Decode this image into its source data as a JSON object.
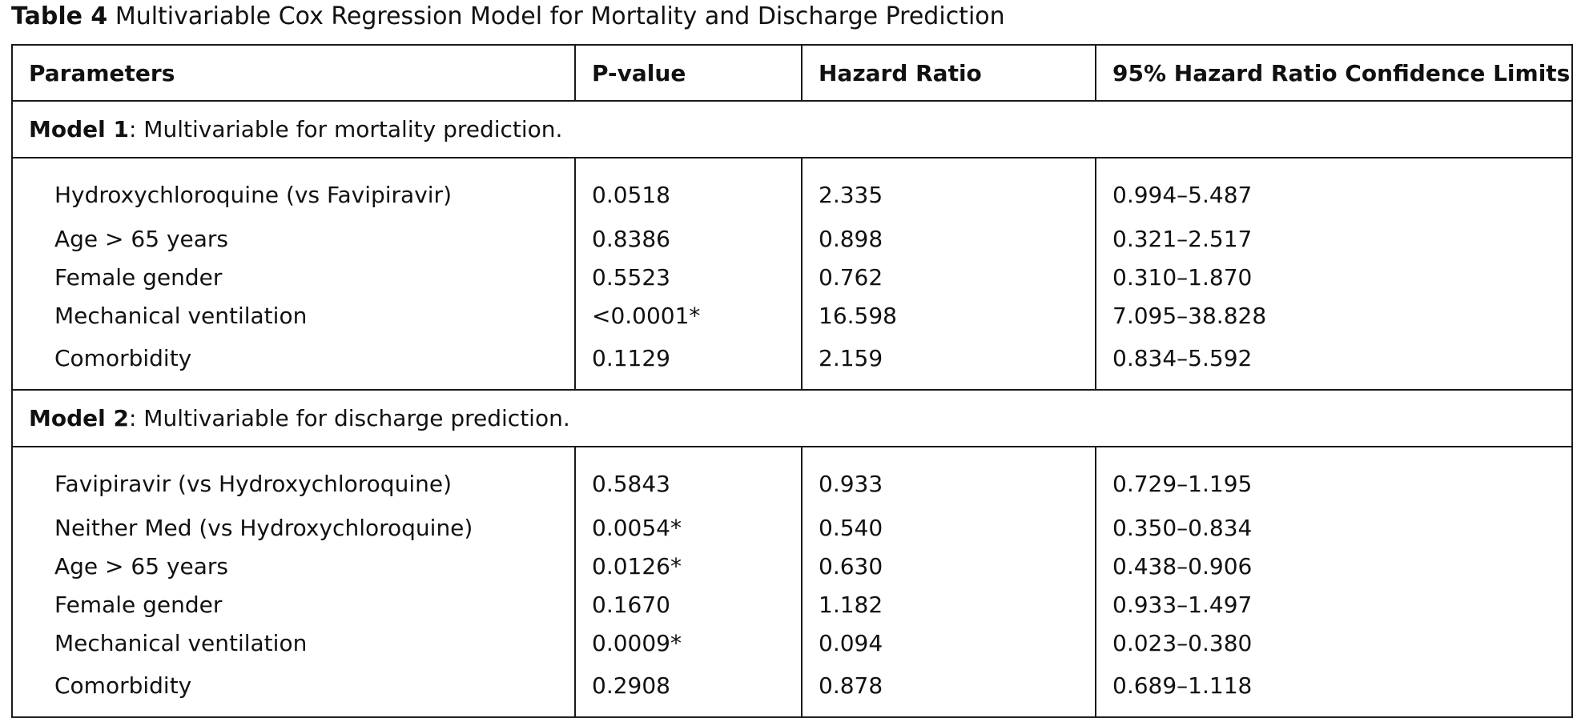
{
  "caption": {
    "label": "Table 4",
    "text": "Multivariable Cox Regression Model for Mortality and Discharge Prediction"
  },
  "columns": [
    "Parameters",
    "P-value",
    "Hazard Ratio",
    "95% Hazard Ratio Confidence Limits"
  ],
  "models": [
    {
      "name": "Model 1",
      "description": ": Multivariable for mortality prediction.",
      "rows": [
        {
          "parameter": "Hydroxychloroquine (vs Favipiravir)",
          "p_value": "0.0518",
          "hazard_ratio": "2.335",
          "ci": "0.994–5.487"
        },
        {
          "parameter": "Age > 65 years",
          "p_value": "0.8386",
          "hazard_ratio": "0.898",
          "ci": "0.321–2.517"
        },
        {
          "parameter": "Female gender",
          "p_value": "0.5523",
          "hazard_ratio": "0.762",
          "ci": "0.310–1.870"
        },
        {
          "parameter": "Mechanical ventilation",
          "p_value": "<0.0001*",
          "hazard_ratio": "16.598",
          "ci": "7.095–38.828"
        },
        {
          "parameter": "Comorbidity",
          "p_value": "0.1129",
          "hazard_ratio": "2.159",
          "ci": "0.834–5.592"
        }
      ]
    },
    {
      "name": "Model 2",
      "description": ": Multivariable for discharge prediction.",
      "rows": [
        {
          "parameter": "Favipiravir (vs Hydroxychloroquine)",
          "p_value": "0.5843",
          "hazard_ratio": "0.933",
          "ci": "0.729–1.195"
        },
        {
          "parameter": "Neither Med (vs Hydroxychloroquine)",
          "p_value": "0.0054*",
          "hazard_ratio": "0.540",
          "ci": "0.350–0.834"
        },
        {
          "parameter": "Age > 65 years",
          "p_value": "0.0126*",
          "hazard_ratio": "0.630",
          "ci": "0.438–0.906"
        },
        {
          "parameter": "Female gender",
          "p_value": "0.1670",
          "hazard_ratio": "1.182",
          "ci": "0.933–1.497"
        },
        {
          "parameter": "Mechanical ventilation",
          "p_value": "0.0009*",
          "hazard_ratio": "0.094",
          "ci": "0.023–0.380"
        },
        {
          "parameter": "Comorbidity",
          "p_value": "0.2908",
          "hazard_ratio": "0.878",
          "ci": "0.689–1.118"
        }
      ]
    }
  ]
}
